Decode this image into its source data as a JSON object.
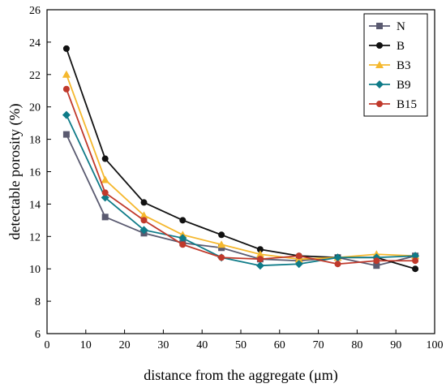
{
  "chart_data": {
    "type": "line",
    "xlabel": "distance from the aggregate (μm)",
    "ylabel": "detectable porosity (%)",
    "xlim": [
      0,
      100
    ],
    "ylim": [
      6,
      26
    ],
    "x_ticks": [
      0,
      10,
      20,
      30,
      40,
      50,
      60,
      70,
      80,
      90,
      100
    ],
    "y_ticks": [
      6,
      8,
      10,
      12,
      14,
      16,
      18,
      20,
      22,
      24,
      26
    ],
    "x": [
      5,
      15,
      25,
      35,
      45,
      55,
      65,
      75,
      85,
      95
    ],
    "legend_position": "top-right",
    "series": [
      {
        "name": "N",
        "color": "#5a5a70",
        "marker": "square",
        "values": [
          18.3,
          13.2,
          12.2,
          11.6,
          11.3,
          10.6,
          10.5,
          10.7,
          10.2,
          10.8
        ]
      },
      {
        "name": "B",
        "color": "#111111",
        "marker": "circle",
        "values": [
          23.6,
          16.8,
          14.1,
          13.0,
          12.1,
          11.2,
          10.8,
          10.7,
          10.7,
          10.0
        ]
      },
      {
        "name": "B3",
        "color": "#f5b82e",
        "marker": "triangle",
        "values": [
          22.0,
          15.5,
          13.3,
          12.1,
          11.5,
          10.9,
          10.6,
          10.7,
          10.9,
          10.8
        ]
      },
      {
        "name": "B9",
        "color": "#0e7b88",
        "marker": "diamond",
        "values": [
          19.5,
          14.4,
          12.4,
          11.9,
          10.7,
          10.2,
          10.3,
          10.7,
          10.7,
          10.8
        ]
      },
      {
        "name": "B15",
        "color": "#c0392b",
        "marker": "circle",
        "values": [
          21.1,
          14.7,
          13.0,
          11.5,
          10.7,
          10.6,
          10.8,
          10.3,
          10.5,
          10.5
        ]
      }
    ]
  }
}
